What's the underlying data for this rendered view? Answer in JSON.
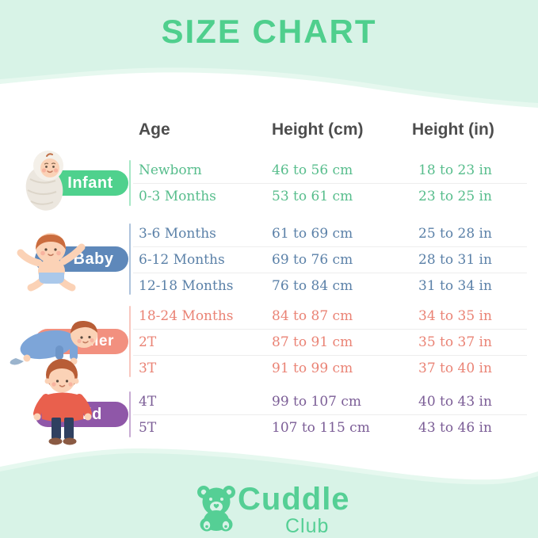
{
  "page": {
    "title": "SIZE CHART",
    "background_color": "#d8f3e7",
    "wave_light_color": "#e6f8ef",
    "card_color": "#ffffff",
    "title_color": "#4fcf8d",
    "header_text_color": "#4d4d4d",
    "row_separator_color": "#ededed"
  },
  "table": {
    "headers": {
      "age": "Age",
      "height_cm": "Height (cm)",
      "height_in": "Height (in)"
    },
    "groups": [
      {
        "label": "Infant",
        "color": "#4fd18d",
        "text_color": "#57bd8c",
        "icon": "swaddled-infant-illustration",
        "rows": [
          {
            "age": "Newborn",
            "height_cm": "46 to 56 cm",
            "height_in": "18 to 23 in"
          },
          {
            "age": "0-3 Months",
            "height_cm": "53 to 61 cm",
            "height_in": "23 to 25 in"
          }
        ]
      },
      {
        "label": "Baby",
        "color": "#5e88ba",
        "text_color": "#5b81a8",
        "icon": "sitting-baby-illustration",
        "rows": [
          {
            "age": "3-6 Months",
            "height_cm": "61 to 69 cm",
            "height_in": "25 to 28 in"
          },
          {
            "age": "6-12 Months",
            "height_cm": "69 to 76 cm",
            "height_in": "28 to 31 in"
          },
          {
            "age": "12-18 Months",
            "height_cm": "76 to 84 cm",
            "height_in": "31 to 34 in"
          }
        ]
      },
      {
        "label": "Toddler",
        "color": "#f2907f",
        "text_color": "#ea8375",
        "icon": "crawling-toddler-illustration",
        "rows": [
          {
            "age": "18-24 Months",
            "height_cm": "84 to 87 cm",
            "height_in": "34 to 35 in"
          },
          {
            "age": "2T",
            "height_cm": "87 to 91 cm",
            "height_in": "35 to 37 in"
          },
          {
            "age": "3T",
            "height_cm": "91 to 99 cm",
            "height_in": "37 to 40 in"
          }
        ]
      },
      {
        "label": "Kid",
        "color": "#8f57a8",
        "text_color": "#7b5d96",
        "icon": "standing-kid-illustration",
        "rows": [
          {
            "age": "4T",
            "height_cm": "99 to 107 cm",
            "height_in": "40 to 43 in"
          },
          {
            "age": "5T",
            "height_cm": "107 to 115 cm",
            "height_in": "43 to 46 in"
          }
        ]
      }
    ]
  },
  "brand": {
    "name": "Cuddle",
    "sub": "Club",
    "logo_color": "#55cf95",
    "logo_icon": "teddy-bear-icon"
  },
  "chart_data": {
    "type": "table",
    "title": "SIZE CHART",
    "columns": [
      "Age",
      "Height (cm)",
      "Height (in)"
    ],
    "row_groups": [
      {
        "group": "Infant",
        "rows": [
          [
            "Newborn",
            "46 to 56 cm",
            "18 to 23 in"
          ],
          [
            "0-3 Months",
            "53 to 61 cm",
            "23 to 25 in"
          ]
        ]
      },
      {
        "group": "Baby",
        "rows": [
          [
            "3-6 Months",
            "61 to 69 cm",
            "25 to 28 in"
          ],
          [
            "6-12 Months",
            "69 to 76 cm",
            "28 to 31 in"
          ],
          [
            "12-18 Months",
            "76 to 84 cm",
            "31 to 34 in"
          ]
        ]
      },
      {
        "group": "Toddler",
        "rows": [
          [
            "18-24 Months",
            "84 to 87 cm",
            "34 to 35 in"
          ],
          [
            "2T",
            "87 to 91 cm",
            "35 to 37 in"
          ],
          [
            "3T",
            "91 to 99 cm",
            "37 to 40 in"
          ]
        ]
      },
      {
        "group": "Kid",
        "rows": [
          [
            "4T",
            "99 to 107 cm",
            "40 to 43 in"
          ],
          [
            "5T",
            "107 to 115 cm",
            "43 to 46 in"
          ]
        ]
      }
    ]
  }
}
